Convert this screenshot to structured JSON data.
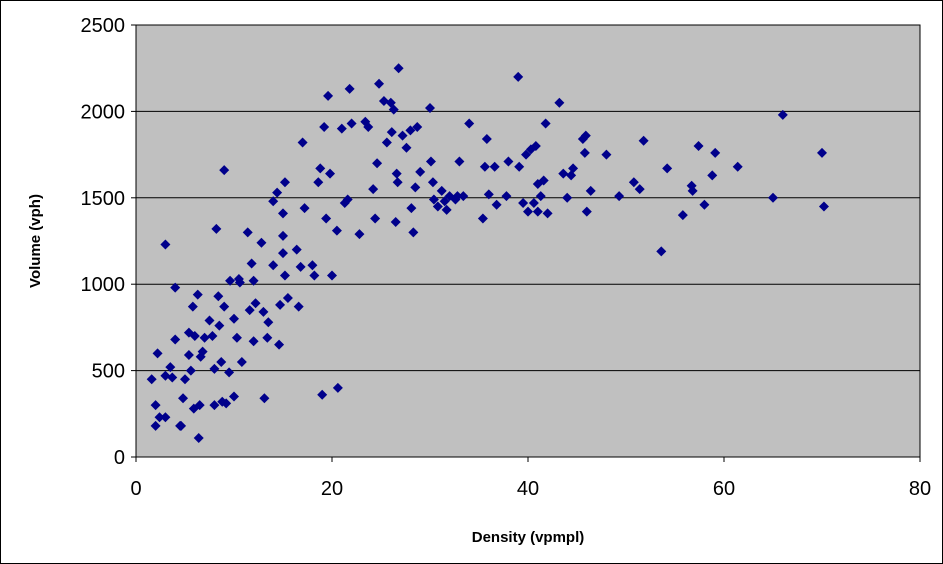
{
  "chart_data": {
    "type": "scatter",
    "xlabel": "Density (vpmpl)",
    "ylabel": "Volume (vph)",
    "xlim": [
      0,
      80
    ],
    "ylim": [
      0,
      2500
    ],
    "xticks": [
      0,
      20,
      40,
      60,
      80
    ],
    "yticks": [
      0,
      500,
      1000,
      1500,
      2000,
      2500
    ],
    "grid": "horizontal",
    "colors": {
      "plot_area": "#c0c0c0",
      "marker": "#00008b",
      "gridline": "#000000"
    },
    "marker": "diamond",
    "series": [
      {
        "points": [
          [
            1.6,
            450
          ],
          [
            2,
            180
          ],
          [
            2,
            300
          ],
          [
            2.2,
            600
          ],
          [
            2.4,
            230
          ],
          [
            3,
            230
          ],
          [
            3,
            1230
          ],
          [
            3,
            470
          ],
          [
            3.5,
            520
          ],
          [
            3.7,
            460
          ],
          [
            4,
            680
          ],
          [
            4,
            980
          ],
          [
            4.5,
            180
          ],
          [
            4.6,
            180
          ],
          [
            4.8,
            340
          ],
          [
            5,
            450
          ],
          [
            5.4,
            590
          ],
          [
            5.4,
            720
          ],
          [
            5.6,
            500
          ],
          [
            5.8,
            870
          ],
          [
            5.9,
            280
          ],
          [
            6,
            700
          ],
          [
            6.3,
            940
          ],
          [
            6.4,
            110
          ],
          [
            6.5,
            300
          ],
          [
            6.6,
            580
          ],
          [
            6.8,
            610
          ],
          [
            7,
            690
          ],
          [
            7.5,
            790
          ],
          [
            7.8,
            700
          ],
          [
            8,
            510
          ],
          [
            8,
            300
          ],
          [
            8.2,
            1320
          ],
          [
            8.4,
            930
          ],
          [
            8.5,
            760
          ],
          [
            8.7,
            550
          ],
          [
            8.8,
            320
          ],
          [
            9,
            870
          ],
          [
            9,
            1660
          ],
          [
            9.2,
            310
          ],
          [
            9.5,
            490
          ],
          [
            9.6,
            1020
          ],
          [
            10,
            800
          ],
          [
            10,
            350
          ],
          [
            10.3,
            690
          ],
          [
            10.5,
            1030
          ],
          [
            10.6,
            1010
          ],
          [
            10.8,
            550
          ],
          [
            11.4,
            1300
          ],
          [
            11.6,
            850
          ],
          [
            11.8,
            1120
          ],
          [
            12,
            670
          ],
          [
            12,
            1020
          ],
          [
            12.2,
            890
          ],
          [
            12.8,
            1240
          ],
          [
            13,
            840
          ],
          [
            13.1,
            340
          ],
          [
            13.4,
            690
          ],
          [
            13.5,
            780
          ],
          [
            14,
            1110
          ],
          [
            14,
            1480
          ],
          [
            14.4,
            1530
          ],
          [
            14.6,
            650
          ],
          [
            14.7,
            880
          ],
          [
            15,
            1180
          ],
          [
            15,
            1280
          ],
          [
            15,
            1410
          ],
          [
            15.2,
            1590
          ],
          [
            15.2,
            1050
          ],
          [
            15.5,
            920
          ],
          [
            16.4,
            1200
          ],
          [
            16.6,
            870
          ],
          [
            16.8,
            1100
          ],
          [
            17,
            1820
          ],
          [
            17.2,
            1440
          ],
          [
            18,
            1110
          ],
          [
            18.2,
            1050
          ],
          [
            18.6,
            1590
          ],
          [
            18.8,
            1670
          ],
          [
            19,
            360
          ],
          [
            19.2,
            1910
          ],
          [
            19.4,
            1380
          ],
          [
            19.6,
            2090
          ],
          [
            19.8,
            1640
          ],
          [
            20,
            1050
          ],
          [
            20.5,
            1310
          ],
          [
            20.6,
            400
          ],
          [
            21,
            1900
          ],
          [
            21.3,
            1470
          ],
          [
            21.6,
            1490
          ],
          [
            21.8,
            2130
          ],
          [
            22,
            1930
          ],
          [
            22.8,
            1290
          ],
          [
            23.4,
            1940
          ],
          [
            23.7,
            1910
          ],
          [
            24.2,
            1550
          ],
          [
            24.4,
            1380
          ],
          [
            24.6,
            1700
          ],
          [
            24.8,
            2160
          ],
          [
            25.3,
            2060
          ],
          [
            25.6,
            1820
          ],
          [
            26,
            2050
          ],
          [
            26.1,
            1880
          ],
          [
            26.3,
            2010
          ],
          [
            26.5,
            1360
          ],
          [
            26.6,
            1640
          ],
          [
            26.7,
            1590
          ],
          [
            26.8,
            2250
          ],
          [
            27.2,
            1860
          ],
          [
            27.6,
            1790
          ],
          [
            28,
            1890
          ],
          [
            28.1,
            1440
          ],
          [
            28.3,
            1300
          ],
          [
            28.5,
            1560
          ],
          [
            28.7,
            1910
          ],
          [
            29,
            1650
          ],
          [
            30,
            2020
          ],
          [
            30.1,
            1710
          ],
          [
            30.3,
            1590
          ],
          [
            30.4,
            1490
          ],
          [
            30.8,
            1450
          ],
          [
            31.2,
            1540
          ],
          [
            31.5,
            1480
          ],
          [
            31.7,
            1430
          ],
          [
            32,
            1510
          ],
          [
            32.6,
            1490
          ],
          [
            32.8,
            1510
          ],
          [
            33,
            1710
          ],
          [
            33.4,
            1510
          ],
          [
            34,
            1930
          ],
          [
            35.4,
            1380
          ],
          [
            35.6,
            1680
          ],
          [
            35.8,
            1840
          ],
          [
            36,
            1520
          ],
          [
            36.6,
            1680
          ],
          [
            36.8,
            1460
          ],
          [
            37.8,
            1510
          ],
          [
            38,
            1710
          ],
          [
            39,
            2200
          ],
          [
            39.1,
            1680
          ],
          [
            39.5,
            1470
          ],
          [
            39.8,
            1750
          ],
          [
            40,
            1420
          ],
          [
            40.3,
            1780
          ],
          [
            40.6,
            1470
          ],
          [
            40.8,
            1800
          ],
          [
            41,
            1580
          ],
          [
            41,
            1420
          ],
          [
            41.3,
            1510
          ],
          [
            41.6,
            1600
          ],
          [
            41.8,
            1930
          ],
          [
            42,
            1410
          ],
          [
            43.2,
            2050
          ],
          [
            43.6,
            1640
          ],
          [
            44,
            1500
          ],
          [
            44.4,
            1630
          ],
          [
            44.6,
            1670
          ],
          [
            45.6,
            1840
          ],
          [
            45.8,
            1760
          ],
          [
            45.9,
            1860
          ],
          [
            46,
            1420
          ],
          [
            46.4,
            1540
          ],
          [
            48,
            1750
          ],
          [
            49.3,
            1510
          ],
          [
            50.8,
            1590
          ],
          [
            51.4,
            1550
          ],
          [
            51.8,
            1830
          ],
          [
            53.6,
            1190
          ],
          [
            54.2,
            1670
          ],
          [
            55.8,
            1400
          ],
          [
            56.7,
            1570
          ],
          [
            56.8,
            1540
          ],
          [
            57.4,
            1800
          ],
          [
            58,
            1460
          ],
          [
            58.8,
            1630
          ],
          [
            59.1,
            1760
          ],
          [
            61.4,
            1680
          ],
          [
            65,
            1500
          ],
          [
            66,
            1980
          ],
          [
            70,
            1760
          ],
          [
            70.2,
            1450
          ]
        ]
      }
    ]
  }
}
